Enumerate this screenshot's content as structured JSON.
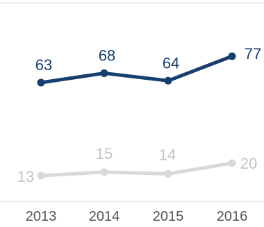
{
  "chart_data": {
    "type": "line",
    "categories": [
      "2013",
      "2014",
      "2015",
      "2016"
    ],
    "series": [
      {
        "values": [
          63,
          68,
          64,
          77
        ],
        "labels": [
          "63",
          "68",
          "64",
          "77"
        ],
        "color": "#163f70",
        "label_color": "#163f70"
      },
      {
        "values": [
          13,
          15,
          14,
          20
        ],
        "labels": [
          "13",
          "15",
          "14",
          "20"
        ],
        "color": "#d9d9d9",
        "label_color": "#c4c4c4"
      }
    ],
    "title": "",
    "xlabel": "",
    "ylabel": "",
    "grid": false,
    "legend": "none",
    "colors": {
      "axis_line": "#d9d9d9",
      "tick_text": "#555555"
    }
  }
}
